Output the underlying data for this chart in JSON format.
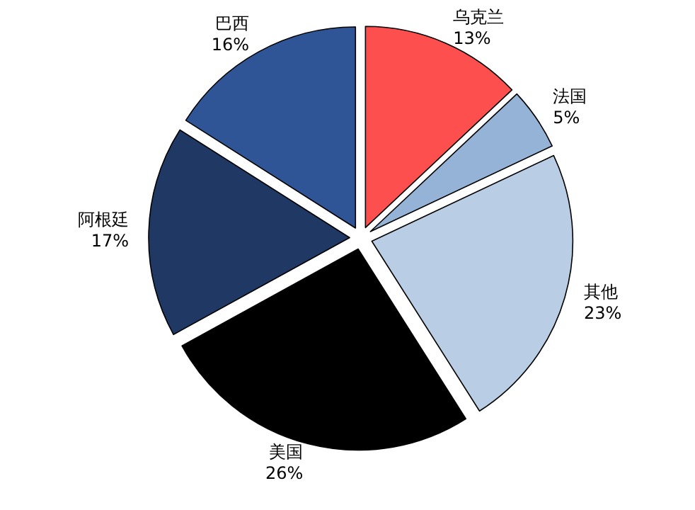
{
  "chart_data": {
    "type": "pie",
    "categories": [
      "乌克兰",
      "法国",
      "其他",
      "美国",
      "阿根廷",
      "巴西"
    ],
    "values": [
      13,
      5,
      23,
      26,
      17,
      16
    ],
    "colors": [
      "#fe4f4f",
      "#95b3d7",
      "#b9cde5",
      "#000000",
      "#1f3864",
      "#2f5597"
    ],
    "value_labels": [
      "13%",
      "5%",
      "23%",
      "26%",
      "17%",
      "16%"
    ]
  }
}
